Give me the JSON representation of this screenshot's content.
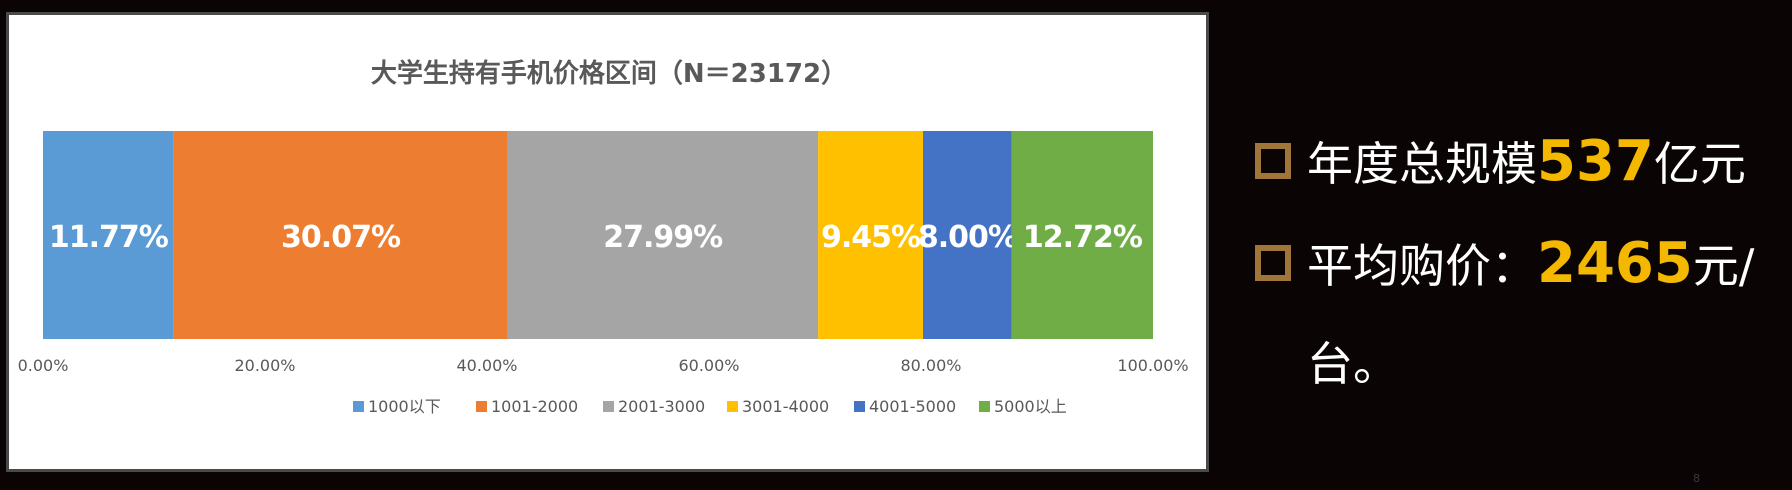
{
  "chart_data": {
    "type": "bar",
    "orientation": "horizontal",
    "stacked": true,
    "title": "大学生持有手机价格区间（N＝23172）",
    "xlim": [
      0,
      100
    ],
    "xticks": [
      "0.00%",
      "20.00%",
      "40.00%",
      "60.00%",
      "80.00%",
      "100.00%"
    ],
    "grid": false,
    "legend_position": "bottom",
    "series": [
      {
        "name": "1000以下",
        "value": 11.77,
        "label": "11.77%",
        "color": "#5b9bd5"
      },
      {
        "name": "1001-2000",
        "value": 30.07,
        "label": "30.07%",
        "color": "#ed7d31"
      },
      {
        "name": "2001-3000",
        "value": 27.99,
        "label": "27.99%",
        "color": "#a5a5a5"
      },
      {
        "name": "3001-4000",
        "value": 9.45,
        "label": "9.45%",
        "color": "#ffc000"
      },
      {
        "name": "4001-5000",
        "value": 8.0,
        "label": "8.00%",
        "color": "#4472c4"
      },
      {
        "name": "5000以上",
        "value": 12.72,
        "label": "12.72%",
        "color": "#70ad47"
      }
    ]
  },
  "bullets": {
    "line1_prefix": "年度总规模",
    "line1_value": "537",
    "line1_suffix": "亿元",
    "line2_prefix": "平均购价：",
    "line2_value": "2465",
    "line2_suffix": "元/",
    "line2_cont": "台。"
  },
  "page_number": "8",
  "colors": {
    "background": "#0a0504",
    "highlight": "#f5b800",
    "bullet_box": "#a0753a"
  }
}
